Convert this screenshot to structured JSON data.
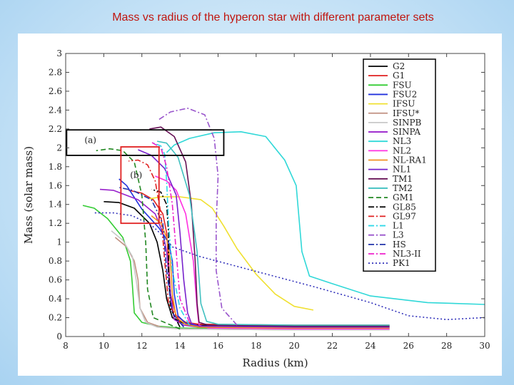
{
  "slide_title": "Mass vs radius of the hyperon star with different parameter sets",
  "chart_data": {
    "type": "line",
    "title": "Mass vs radius of the hyperon star with different parameter sets",
    "xlabel": "Radius (km)",
    "ylabel": "Mass (solar mass)",
    "xlim": [
      8,
      30
    ],
    "ylim": [
      0,
      3
    ],
    "xticks": [
      8,
      10,
      12,
      14,
      16,
      18,
      20,
      22,
      24,
      26,
      28,
      30
    ],
    "yticks": [
      0,
      0.2,
      0.4,
      0.6,
      0.8,
      1,
      1.2,
      1.4,
      1.6,
      1.8,
      2,
      2.2,
      2.4,
      2.6,
      2.8,
      3
    ],
    "legend_position": "top-right",
    "annotations": [
      {
        "label": "(a)",
        "x": 9.3,
        "y": 2.05,
        "box": [
          8.05,
          1.92,
          16.3,
          2.19
        ],
        "color": "#000000"
      },
      {
        "label": "(b)",
        "x": 11.7,
        "y": 1.68,
        "box": [
          10.9,
          1.2,
          12.9,
          2.01
        ],
        "color": "#e02020"
      }
    ],
    "series": [
      {
        "name": "G2",
        "color": "#000000",
        "dash": "solid",
        "points": [
          [
            25,
            0.11
          ],
          [
            20,
            0.11
          ],
          [
            15,
            0.12
          ],
          [
            14.2,
            0.14
          ],
          [
            13.6,
            0.2
          ],
          [
            13.3,
            0.4
          ],
          [
            13.1,
            0.7
          ],
          [
            12.8,
            1
          ],
          [
            12.4,
            1.2
          ],
          [
            11.6,
            1.36
          ],
          [
            10.8,
            1.42
          ],
          [
            10,
            1.43
          ]
        ]
      },
      {
        "name": "G1",
        "color": "#e02020",
        "dash": "solid",
        "points": [
          [
            25,
            0.12
          ],
          [
            20,
            0.12
          ],
          [
            15,
            0.13
          ],
          [
            14.3,
            0.15
          ],
          [
            13.8,
            0.22
          ],
          [
            13.5,
            0.45
          ],
          [
            13.4,
            0.8
          ],
          [
            13.3,
            1.1
          ],
          [
            13.1,
            1.3
          ],
          [
            12.6,
            1.45
          ],
          [
            12,
            1.52
          ],
          [
            11.3,
            1.55
          ]
        ]
      },
      {
        "name": "FSU",
        "color": "#33cc33",
        "dash": "solid",
        "points": [
          [
            25,
            0.08
          ],
          [
            20,
            0.08
          ],
          [
            14,
            0.09
          ],
          [
            12.8,
            0.11
          ],
          [
            12,
            0.15
          ],
          [
            11.6,
            0.25
          ],
          [
            11.5,
            0.55
          ],
          [
            11.4,
            0.8
          ],
          [
            11,
            1.05
          ],
          [
            10.2,
            1.25
          ],
          [
            9.5,
            1.36
          ],
          [
            8.9,
            1.39
          ]
        ]
      },
      {
        "name": "FSU2",
        "color": "#2233dd",
        "dash": "solid",
        "points": [
          [
            25,
            0.1
          ],
          [
            20,
            0.1
          ],
          [
            15,
            0.11
          ],
          [
            14.3,
            0.14
          ],
          [
            13.9,
            0.22
          ],
          [
            13.7,
            0.45
          ],
          [
            13.6,
            0.8
          ],
          [
            13.4,
            1
          ],
          [
            12.9,
            1.15
          ],
          [
            12,
            1.35
          ],
          [
            11.2,
            1.6
          ],
          [
            10.8,
            1.67
          ]
        ]
      },
      {
        "name": "IFSU",
        "color": "#f0e030",
        "dash": "solid",
        "points": [
          [
            21,
            0.28
          ],
          [
            20,
            0.32
          ],
          [
            19,
            0.45
          ],
          [
            18,
            0.66
          ],
          [
            17,
            0.93
          ],
          [
            16.3,
            1.17
          ],
          [
            15.7,
            1.36
          ],
          [
            15.1,
            1.45
          ],
          [
            14,
            1.48
          ],
          [
            13,
            1.48
          ],
          [
            12.4,
            1.46
          ]
        ]
      },
      {
        "name": "IFSU*",
        "color": "#c09080",
        "dash": "solid",
        "points": [
          [
            25,
            0.07
          ],
          [
            20,
            0.07
          ],
          [
            14,
            0.08
          ],
          [
            13,
            0.1
          ],
          [
            12.3,
            0.15
          ],
          [
            11.9,
            0.3
          ],
          [
            11.8,
            0.6
          ],
          [
            11.6,
            0.8
          ],
          [
            11.2,
            0.95
          ],
          [
            10.6,
            1.05
          ]
        ]
      },
      {
        "name": "SINPB",
        "color": "#c8c8c8",
        "dash": "solid",
        "points": [
          [
            25,
            0.07
          ],
          [
            20,
            0.07
          ],
          [
            14,
            0.08
          ],
          [
            12.8,
            0.1
          ],
          [
            12.2,
            0.15
          ],
          [
            11.9,
            0.3
          ],
          [
            11.7,
            0.6
          ],
          [
            11.5,
            0.85
          ],
          [
            11,
            1.02
          ],
          [
            10.4,
            1.12
          ]
        ]
      },
      {
        "name": "SINPA",
        "color": "#9922cc",
        "dash": "solid",
        "points": [
          [
            25,
            0.09
          ],
          [
            20,
            0.09
          ],
          [
            15,
            0.1
          ],
          [
            14.2,
            0.12
          ],
          [
            13.7,
            0.18
          ],
          [
            13.5,
            0.45
          ],
          [
            13.3,
            0.9
          ],
          [
            13.1,
            1.1
          ],
          [
            12.7,
            1.3
          ],
          [
            11.8,
            1.45
          ],
          [
            10.5,
            1.55
          ],
          [
            9.8,
            1.56
          ]
        ]
      },
      {
        "name": "NL3",
        "color": "#30d8d8",
        "dash": "solid",
        "points": [
          [
            30,
            0.34
          ],
          [
            27,
            0.36
          ],
          [
            24,
            0.43
          ],
          [
            22,
            0.56
          ],
          [
            20.8,
            0.64
          ],
          [
            20.4,
            0.9
          ],
          [
            20.1,
            1.6
          ],
          [
            19.5,
            1.87
          ],
          [
            18.5,
            2.12
          ],
          [
            17.2,
            2.17
          ],
          [
            15.8,
            2.16
          ],
          [
            14.5,
            2.1
          ],
          [
            13.7,
            2.03
          ],
          [
            13.3,
            1.95
          ]
        ]
      },
      {
        "name": "NL2",
        "color": "#ff30e0",
        "dash": "solid",
        "points": [
          [
            25,
            0.08
          ],
          [
            20,
            0.08
          ],
          [
            15.5,
            0.09
          ],
          [
            15,
            0.12
          ],
          [
            14.9,
            0.3
          ],
          [
            14.7,
            0.8
          ],
          [
            14.3,
            1.3
          ],
          [
            13.8,
            1.55
          ],
          [
            13.3,
            1.65
          ],
          [
            12.7,
            1.7
          ]
        ]
      },
      {
        "name": "NL-RA1",
        "color": "#f09020",
        "dash": "solid",
        "points": [
          [
            25,
            0.09
          ],
          [
            20,
            0.09
          ],
          [
            15,
            0.1
          ],
          [
            14.3,
            0.13
          ],
          [
            13.8,
            0.2
          ],
          [
            13.6,
            0.45
          ],
          [
            13.5,
            0.8
          ],
          [
            13.3,
            1.05
          ],
          [
            13,
            1.2
          ],
          [
            12.5,
            1.28
          ]
        ]
      },
      {
        "name": "NL1",
        "color": "#7722cc",
        "dash": "solid",
        "points": [
          [
            25,
            0.1
          ],
          [
            20,
            0.1
          ],
          [
            15,
            0.11
          ],
          [
            14.6,
            0.14
          ],
          [
            14.4,
            0.25
          ],
          [
            14.2,
            0.6
          ],
          [
            14,
            1.1
          ],
          [
            13.8,
            1.5
          ],
          [
            13.2,
            1.78
          ],
          [
            12.5,
            1.92
          ],
          [
            11.8,
            1.98
          ]
        ]
      },
      {
        "name": "TM1",
        "color": "#661155",
        "dash": "solid",
        "points": [
          [
            25,
            0.11
          ],
          [
            20,
            0.11
          ],
          [
            15.5,
            0.12
          ],
          [
            15,
            0.15
          ],
          [
            14.9,
            0.35
          ],
          [
            14.8,
            0.8
          ],
          [
            14.6,
            1.4
          ],
          [
            14.3,
            1.85
          ],
          [
            13.7,
            2.12
          ],
          [
            13,
            2.22
          ],
          [
            12.4,
            2.2
          ]
        ]
      },
      {
        "name": "TM2",
        "color": "#40c0c0",
        "dash": "solid",
        "points": [
          [
            25,
            0.12
          ],
          [
            20,
            0.12
          ],
          [
            16,
            0.13
          ],
          [
            15.4,
            0.16
          ],
          [
            15.1,
            0.35
          ],
          [
            14.9,
            0.9
          ],
          [
            14.5,
            1.5
          ],
          [
            13.9,
            1.9
          ],
          [
            13.3,
            2.05
          ],
          [
            12.8,
            2.07
          ]
        ]
      },
      {
        "name": "GM1",
        "color": "#228822",
        "dash": "dashed",
        "points": [
          [
            14,
            0.08
          ],
          [
            12.6,
            0.2
          ],
          [
            12.3,
            0.5
          ],
          [
            12.2,
            1
          ],
          [
            12,
            1.5
          ],
          [
            11.6,
            1.85
          ],
          [
            11,
            1.97
          ],
          [
            10.3,
            1.99
          ],
          [
            9.6,
            1.97
          ]
        ]
      },
      {
        "name": "GL85",
        "color": "#000000",
        "dash": "dashdot",
        "points": [
          [
            14,
            0.1
          ],
          [
            13.5,
            0.3
          ],
          [
            13.4,
            0.7
          ],
          [
            13.4,
            1.1
          ],
          [
            13.3,
            1.4
          ],
          [
            13,
            1.53
          ],
          [
            12.5,
            1.56
          ]
        ]
      },
      {
        "name": "GL97",
        "color": "#e02020",
        "dash": "dashdot",
        "points": [
          [
            14,
            0.15
          ],
          [
            13.4,
            0.35
          ],
          [
            13.2,
            0.8
          ],
          [
            13,
            1.3
          ],
          [
            12.7,
            1.65
          ],
          [
            12.3,
            1.82
          ],
          [
            11.8,
            1.87
          ],
          [
            11.3,
            1.86
          ]
        ]
      },
      {
        "name": "L1",
        "color": "#30d8e8",
        "dash": "dashdot",
        "points": [
          [
            14.5,
            0.12
          ],
          [
            14,
            0.3
          ],
          [
            13.6,
            0.7
          ],
          [
            13.4,
            1.2
          ],
          [
            13.3,
            1.65
          ],
          [
            13.2,
            1.93
          ],
          [
            13,
            2.02
          ],
          [
            12.6,
            2.05
          ]
        ]
      },
      {
        "name": "L3",
        "color": "#9955cc",
        "dash": "dashdot",
        "points": [
          [
            17,
            0.12
          ],
          [
            16.2,
            0.3
          ],
          [
            15.9,
            0.7
          ],
          [
            15.9,
            1.2
          ],
          [
            16,
            1.7
          ],
          [
            15.8,
            2.1
          ],
          [
            15.3,
            2.35
          ],
          [
            14.4,
            2.42
          ],
          [
            13.5,
            2.38
          ],
          [
            12.9,
            2.3
          ]
        ]
      },
      {
        "name": "HS",
        "color": "#2233aa",
        "dash": "dashdot",
        "points": [
          [
            14.2,
            0.1
          ],
          [
            13.6,
            0.25
          ],
          [
            13.3,
            0.7
          ],
          [
            13.1,
            1.2
          ],
          [
            12.5,
            1.45
          ],
          [
            11.5,
            1.55
          ],
          [
            10.8,
            1.58
          ]
        ]
      },
      {
        "name": "NL3-II",
        "color": "#ee22cc",
        "dash": "dashdot",
        "points": [
          [
            14.5,
            0.15
          ],
          [
            14,
            0.4
          ],
          [
            13.8,
            0.9
          ],
          [
            13.6,
            1.4
          ],
          [
            13.3,
            1.8
          ],
          [
            13,
            2
          ],
          [
            12.5,
            2.06
          ]
        ]
      },
      {
        "name": "PK1",
        "color": "#3333bb",
        "dash": "dotted",
        "points": [
          [
            30,
            0.2
          ],
          [
            28,
            0.18
          ],
          [
            26,
            0.22
          ],
          [
            24,
            0.36
          ],
          [
            21,
            0.53
          ],
          [
            18,
            0.69
          ],
          [
            15,
            0.85
          ],
          [
            13.6,
            0.95
          ],
          [
            13.2,
            1.05
          ],
          [
            12.5,
            1.18
          ],
          [
            11.5,
            1.28
          ],
          [
            10.5,
            1.31
          ],
          [
            9.5,
            1.31
          ]
        ]
      }
    ]
  }
}
